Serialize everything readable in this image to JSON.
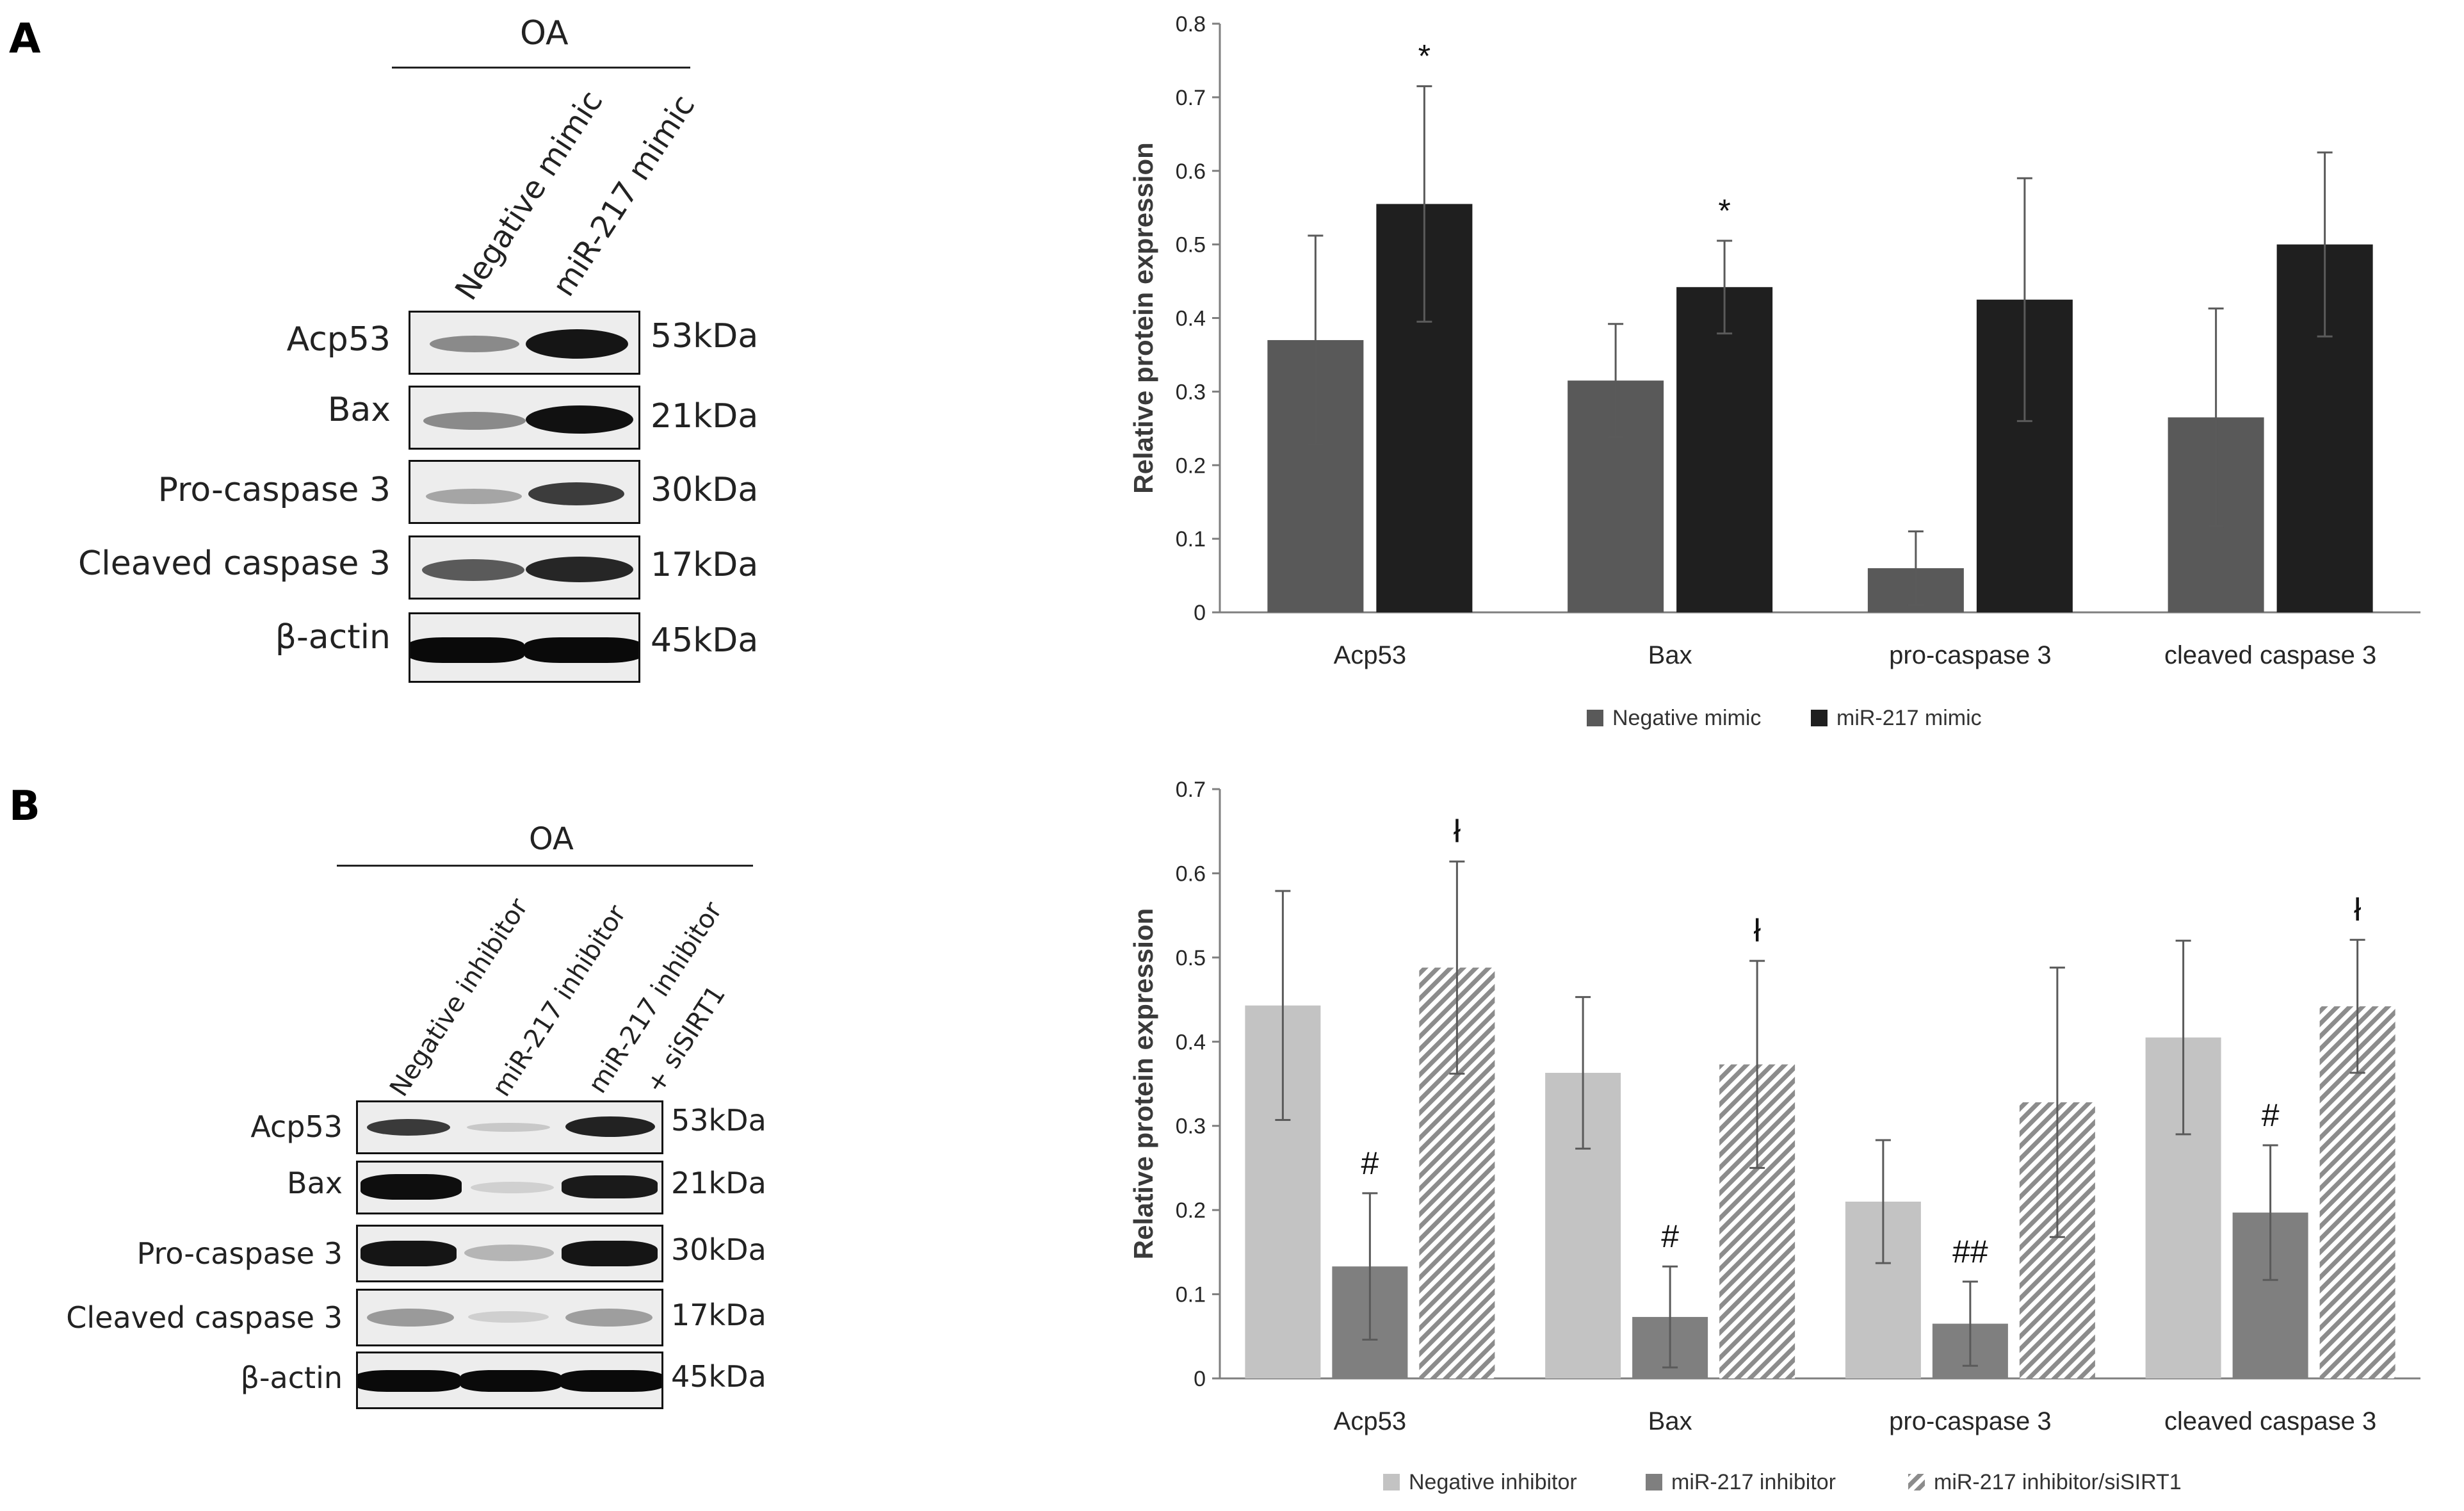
{
  "panel_a": {
    "letter": "A",
    "blot": {
      "group_label": "OA",
      "lanes": [
        "Negative mimic",
        "miR-217 mimic"
      ],
      "rows": [
        {
          "label": "Acp53",
          "kda": "53kDa"
        },
        {
          "label": "Bax",
          "kda": "21kDa"
        },
        {
          "label": "Pro-caspase 3",
          "kda": "30kDa"
        },
        {
          "label": "Cleaved caspase 3",
          "kda": "17kDa"
        },
        {
          "label": "β-actin",
          "kda": "45kDa"
        }
      ]
    }
  },
  "panel_b": {
    "letter": "B",
    "blot": {
      "group_label": "OA",
      "lanes": [
        "Negative inhibitor",
        "miR-217 inhibitor",
        "miR-217 inhibitor",
        "+ siSIRT1"
      ],
      "rows": [
        {
          "label": "Acp53",
          "kda": "53kDa"
        },
        {
          "label": "Bax",
          "kda": "21kDa"
        },
        {
          "label": "Pro-caspase 3",
          "kda": "30kDa"
        },
        {
          "label": "Cleaved caspase 3",
          "kda": "17kDa"
        },
        {
          "label": "β-actin",
          "kda": "45kDa"
        }
      ]
    }
  },
  "chart_data": [
    {
      "type": "bar",
      "ylabel": "Relative protein expression",
      "xlabel": "",
      "ylim": [
        0,
        0.8
      ],
      "yticks": [
        "0",
        "0.1",
        "0.2",
        "0.3",
        "0.4",
        "0.5",
        "0.6",
        "0.7",
        "0.8"
      ],
      "categories": [
        "Acp53",
        "Bax",
        "pro-caspase 3",
        "cleaved caspase 3"
      ],
      "series": [
        {
          "name": "Negative mimic",
          "color": "#595959",
          "pattern": "solid",
          "values": [
            0.37,
            0.315,
            0.06,
            0.265
          ],
          "errors": [
            0.142,
            0.077,
            0.05,
            0.148
          ],
          "annotations": [
            "",
            "",
            "",
            ""
          ]
        },
        {
          "name": "miR-217 mimic",
          "color": "#1f1f1f",
          "pattern": "solid",
          "values": [
            0.555,
            0.442,
            0.425,
            0.5
          ],
          "errors": [
            0.16,
            0.063,
            0.165,
            0.125
          ],
          "annotations": [
            "*",
            "*",
            "",
            ""
          ]
        }
      ],
      "legend_position": "bottom"
    },
    {
      "type": "bar",
      "ylabel": "Relative protein expression",
      "xlabel": "",
      "ylim": [
        0,
        0.7
      ],
      "yticks": [
        "0",
        "0.1",
        "0.2",
        "0.3",
        "0.4",
        "0.5",
        "0.6",
        "0.7"
      ],
      "categories": [
        "Acp53",
        "Bax",
        "pro-caspase 3",
        "cleaved caspase 3"
      ],
      "series": [
        {
          "name": "Negative inhibitor",
          "color": "#c3c3c3",
          "pattern": "solid",
          "values": [
            0.443,
            0.363,
            0.21,
            0.405
          ],
          "errors": [
            0.136,
            0.09,
            0.073,
            0.115
          ],
          "annotations": [
            "",
            "",
            "",
            ""
          ]
        },
        {
          "name": "miR-217 inhibitor",
          "color": "#7f7f7f",
          "pattern": "solid",
          "values": [
            0.133,
            0.073,
            0.065,
            0.197
          ],
          "errors": [
            0.087,
            0.06,
            0.05,
            0.08
          ],
          "annotations": [
            "#",
            "#",
            "##",
            "#"
          ]
        },
        {
          "name": "miR-217 inhibitor/siSIRT1",
          "color": "#a8a8a8",
          "pattern": "hatch",
          "values": [
            0.488,
            0.373,
            0.328,
            0.442
          ],
          "errors": [
            0.126,
            0.123,
            0.16,
            0.079
          ],
          "annotations": [
            "ł",
            "ł",
            "",
            "ł"
          ]
        }
      ],
      "legend_position": "bottom"
    }
  ]
}
